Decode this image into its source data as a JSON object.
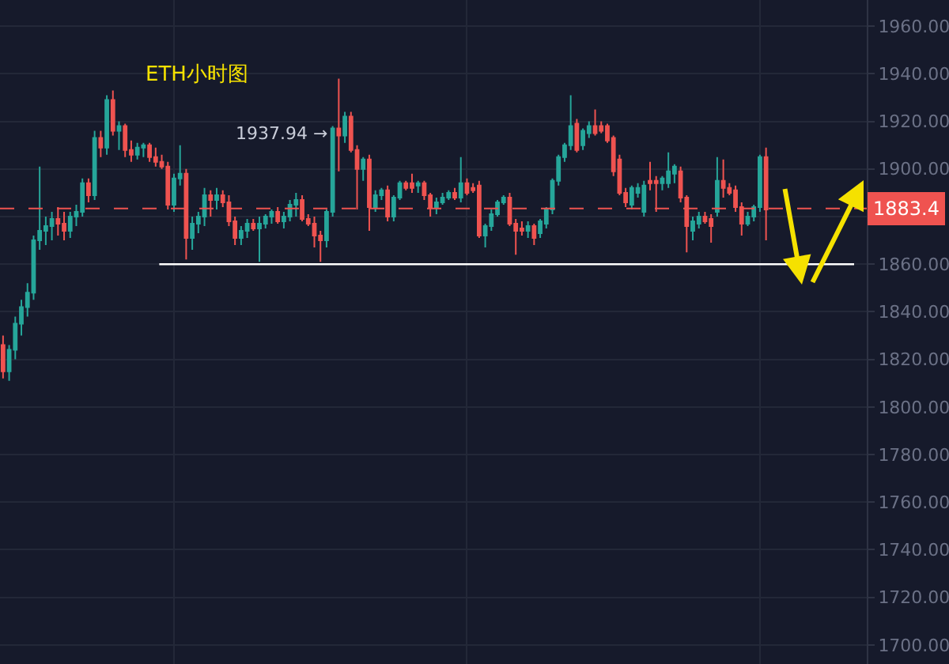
{
  "chart_data": {
    "type": "candlestick",
    "title": "ETH小时图",
    "annotations": [
      "1937.94 →"
    ],
    "categories": [
      null,
      null,
      null,
      null,
      null,
      null,
      null,
      null,
      null,
      null,
      null,
      null,
      null,
      null,
      null,
      null,
      null,
      null,
      null,
      null,
      null,
      null,
      null,
      null,
      null,
      null,
      null,
      null,
      null,
      null,
      null,
      null,
      null,
      null,
      null,
      null,
      null,
      null,
      null,
      null,
      null,
      null,
      null,
      null,
      null,
      null,
      null,
      null,
      null,
      null,
      null,
      null,
      null,
      null,
      null,
      null,
      null,
      null,
      null,
      null,
      null,
      null,
      null,
      null,
      null,
      null,
      null,
      null,
      null,
      null,
      null,
      null,
      null,
      null,
      null,
      null,
      null,
      null,
      null,
      null,
      null,
      null,
      null,
      null,
      null,
      null,
      null,
      null,
      null,
      null,
      null,
      null,
      null,
      null,
      null,
      null,
      null,
      null,
      null,
      null,
      null,
      null,
      null,
      null,
      null,
      null,
      null,
      null,
      null,
      null,
      null,
      null,
      null,
      null,
      null,
      null,
      null,
      null,
      null,
      null,
      null,
      null,
      null,
      null,
      null,
      null,
      null,
      null,
      null,
      null,
      null,
      null,
      null,
      null,
      null,
      null,
      null,
      null,
      null,
      null,
      null,
      null
    ],
    "ohlc": [
      [
        1826,
        1830,
        1812,
        1815
      ],
      [
        1815,
        1826,
        1811,
        1824
      ],
      [
        1824,
        1838,
        1820,
        1835
      ],
      [
        1835,
        1845,
        1830,
        1842
      ],
      [
        1842,
        1852,
        1838,
        1848
      ],
      [
        1848,
        1872,
        1845,
        1870
      ],
      [
        1870,
        1901,
        1866,
        1874
      ],
      [
        1874,
        1880,
        1868,
        1876
      ],
      [
        1876,
        1882,
        1870,
        1879
      ],
      [
        1879,
        1884,
        1872,
        1877
      ],
      [
        1877,
        1882,
        1870,
        1874
      ],
      [
        1874,
        1882,
        1871,
        1880
      ],
      [
        1880,
        1885,
        1876,
        1882
      ],
      [
        1882,
        1896,
        1880,
        1894
      ],
      [
        1894,
        1896,
        1886,
        1889
      ],
      [
        1889,
        1916,
        1887,
        1913
      ],
      [
        1913,
        1916,
        1905,
        1909
      ],
      [
        1909,
        1931,
        1906,
        1929
      ],
      [
        1929,
        1933,
        1914,
        1916
      ],
      [
        1916,
        1920,
        1908,
        1918
      ],
      [
        1918,
        1919,
        1905,
        1908
      ],
      [
        1908,
        1912,
        1903,
        1906
      ],
      [
        1906,
        1911,
        1904,
        1909
      ],
      [
        1909,
        1911,
        1905,
        1910
      ],
      [
        1910,
        1911,
        1903,
        1905
      ],
      [
        1905,
        1909,
        1901,
        1903
      ],
      [
        1903,
        1906,
        1900,
        1901
      ],
      [
        1901,
        1903,
        1883,
        1885
      ],
      [
        1885,
        1898,
        1882,
        1896
      ],
      [
        1896,
        1910,
        1893,
        1898
      ],
      [
        1898,
        1900,
        1862,
        1871
      ],
      [
        1871,
        1880,
        1866,
        1877
      ],
      [
        1877,
        1882,
        1873,
        1880
      ],
      [
        1880,
        1892,
        1876,
        1889
      ],
      [
        1889,
        1891,
        1880,
        1887
      ],
      [
        1887,
        1892,
        1883,
        1889
      ],
      [
        1889,
        1891,
        1884,
        1886
      ],
      [
        1886,
        1889,
        1876,
        1878
      ],
      [
        1878,
        1880,
        1868,
        1871
      ],
      [
        1871,
        1876,
        1868,
        1874
      ],
      [
        1874,
        1879,
        1871,
        1877
      ],
      [
        1877,
        1879,
        1874,
        1875
      ],
      [
        1875,
        1880,
        1861,
        1877
      ],
      [
        1877,
        1881,
        1875,
        1880
      ],
      [
        1880,
        1883,
        1877,
        1882
      ],
      [
        1882,
        1884,
        1877,
        1878
      ],
      [
        1878,
        1882,
        1875,
        1880
      ],
      [
        1880,
        1887,
        1878,
        1885
      ],
      [
        1885,
        1890,
        1880,
        1887
      ],
      [
        1887,
        1889,
        1878,
        1879
      ],
      [
        1879,
        1881,
        1876,
        1877
      ],
      [
        1877,
        1880,
        1867,
        1872
      ],
      [
        1872,
        1874,
        1861,
        1870
      ],
      [
        1870,
        1883,
        1867,
        1882
      ],
      [
        1882,
        1918,
        1880,
        1917
      ],
      [
        1917,
        1937.94,
        1899,
        1914
      ],
      [
        1914,
        1924,
        1911,
        1922
      ],
      [
        1922,
        1924,
        1907,
        1908
      ],
      [
        1908,
        1910,
        1883,
        1900
      ],
      [
        1900,
        1905,
        1895,
        1904
      ],
      [
        1904,
        1906,
        1874,
        1884
      ],
      [
        1884,
        1891,
        1882,
        1889
      ],
      [
        1889,
        1892,
        1887,
        1891
      ],
      [
        1891,
        1893,
        1878,
        1880
      ],
      [
        1880,
        1889,
        1878,
        1888
      ],
      [
        1888,
        1895,
        1887,
        1894
      ],
      [
        1894,
        1895,
        1891,
        1892
      ],
      [
        1894,
        1898,
        1890,
        1892
      ],
      [
        1893,
        1895,
        1890,
        1894
      ],
      [
        1894,
        1895,
        1887,
        1889
      ],
      [
        1889,
        1890,
        1880,
        1884
      ],
      [
        1884,
        1888,
        1881,
        1886
      ],
      [
        1886,
        1890,
        1885,
        1888
      ],
      [
        1888,
        1891,
        1887,
        1890
      ],
      [
        1890,
        1892,
        1887,
        1888
      ],
      [
        1888,
        1905,
        1886,
        1894
      ],
      [
        1894,
        1896,
        1889,
        1890
      ],
      [
        1892,
        1894,
        1890,
        1891
      ],
      [
        1893,
        1895,
        1871,
        1872
      ],
      [
        1872,
        1877,
        1867,
        1876
      ],
      [
        1876,
        1883,
        1874,
        1881
      ],
      [
        1881,
        1887,
        1880,
        1886
      ],
      [
        1886,
        1889,
        1885,
        1888
      ],
      [
        1888,
        1890,
        1876,
        1877
      ],
      [
        1877,
        1879,
        1864,
        1874
      ],
      [
        1875,
        1878,
        1872,
        1874
      ],
      [
        1874,
        1878,
        1871,
        1876
      ],
      [
        1876,
        1877,
        1868,
        1871
      ],
      [
        1873,
        1879,
        1871,
        1878
      ],
      [
        1877,
        1884,
        1875,
        1883
      ],
      [
        1883,
        1896,
        1881,
        1895
      ],
      [
        1895,
        1906,
        1893,
        1905
      ],
      [
        1905,
        1911,
        1903,
        1910
      ],
      [
        1910,
        1931,
        1908,
        1918
      ],
      [
        1919,
        1921,
        1907,
        1908
      ],
      [
        1910,
        1917,
        1908,
        1916
      ],
      [
        1915,
        1920,
        1913,
        1918
      ],
      [
        1918,
        1925,
        1914,
        1915
      ],
      [
        1918,
        1920,
        1915,
        1916
      ],
      [
        1918,
        1919,
        1911,
        1912
      ],
      [
        1913,
        1914,
        1897,
        1899
      ],
      [
        1904,
        1906,
        1889,
        1890
      ],
      [
        1890,
        1892,
        1884,
        1886
      ],
      [
        1885,
        1893,
        1883,
        1892
      ],
      [
        1890,
        1894,
        1888,
        1892
      ],
      [
        1882,
        1895,
        1880,
        1893
      ],
      [
        1895,
        1903,
        1891,
        1894
      ],
      [
        1895,
        1897,
        1882,
        1894
      ],
      [
        1894,
        1897,
        1891,
        1896
      ],
      [
        1894,
        1907,
        1892,
        1899
      ],
      [
        1898,
        1902,
        1894,
        1901
      ],
      [
        1899,
        1901,
        1886,
        1888
      ],
      [
        1888,
        1889,
        1865,
        1876
      ],
      [
        1874,
        1880,
        1870,
        1878
      ],
      [
        1877,
        1882,
        1875,
        1880
      ],
      [
        1880,
        1882,
        1877,
        1878
      ],
      [
        1879,
        1881,
        1869,
        1876
      ],
      [
        1882,
        1905,
        1880,
        1895
      ],
      [
        1895,
        1904,
        1888,
        1892
      ],
      [
        1892,
        1894,
        1889,
        1890
      ],
      [
        1891,
        1893,
        1882,
        1884
      ],
      [
        1884,
        1886,
        1872,
        1877
      ],
      [
        1877,
        1882,
        1876,
        1880
      ],
      [
        1880,
        1885,
        1878,
        1884
      ],
      [
        1884,
        1906,
        1882,
        1905
      ],
      [
        1905,
        1909,
        1870,
        1883
      ],
      null,
      null,
      null,
      null,
      null,
      null,
      null,
      null,
      null,
      null,
      null,
      null,
      null,
      null,
      null,
      null
    ],
    "colors": [
      "#ef5350",
      "#26a69a",
      "#26a69a",
      "#26a69a",
      "#26a69a",
      "#26a69a",
      "#26a69a",
      "#26a69a",
      "#26a69a",
      "#ef5350",
      "#ef5350",
      "#26a69a",
      "#26a69a",
      "#26a69a",
      "#ef5350",
      "#26a69a",
      "#ef5350",
      "#26a69a",
      "#ef5350",
      "#26a69a",
      "#ef5350",
      "#ef5350",
      "#26a69a",
      "#26a69a",
      "#ef5350",
      "#ef5350",
      "#ef5350",
      "#ef5350",
      "#26a69a",
      "#26a69a",
      "#ef5350",
      "#26a69a",
      "#26a69a",
      "#26a69a",
      "#ef5350",
      "#26a69a",
      "#ef5350",
      "#ef5350",
      "#ef5350",
      "#26a69a",
      "#26a69a",
      "#ef5350",
      "#26a69a",
      "#26a69a",
      "#26a69a",
      "#ef5350",
      "#26a69a",
      "#26a69a",
      "#26a69a",
      "#ef5350",
      "#ef5350",
      "#ef5350",
      "#ef5350",
      "#26a69a",
      "#26a69a",
      "#ef5350",
      "#26a69a",
      "#ef5350",
      "#ef5350",
      "#26a69a",
      "#ef5350",
      "#26a69a",
      "#26a69a",
      "#ef5350",
      "#26a69a",
      "#26a69a",
      "#ef5350",
      "#ef5350",
      "#26a69a",
      "#ef5350",
      "#ef5350",
      "#26a69a",
      "#26a69a",
      "#26a69a",
      "#ef5350",
      "#26a69a",
      "#ef5350",
      "#ef5350",
      "#ef5350",
      "#26a69a",
      "#26a69a",
      "#26a69a",
      "#26a69a",
      "#ef5350",
      "#ef5350",
      "#ef5350",
      "#26a69a",
      "#ef5350",
      "#26a69a",
      "#26a69a",
      "#26a69a",
      "#26a69a",
      "#26a69a",
      "#26a69a",
      "#ef5350",
      "#26a69a",
      "#26a69a",
      "#ef5350",
      "#ef5350",
      "#ef5350",
      "#ef5350",
      "#ef5350",
      "#ef5350",
      "#26a69a",
      "#26a69a",
      "#26a69a",
      "#ef5350",
      "#ef5350",
      "#26a69a",
      "#26a69a",
      "#26a69a",
      "#ef5350",
      "#ef5350",
      "#26a69a",
      "#26a69a",
      "#ef5350",
      "#ef5350",
      "#26a69a",
      "#ef5350",
      "#ef5350",
      "#ef5350",
      "#ef5350",
      "#26a69a",
      "#26a69a",
      "#26a69a",
      "#ef5350",
      null,
      null,
      null,
      null,
      null,
      null,
      null,
      null,
      null,
      null,
      null,
      null,
      null,
      null,
      null,
      null
    ],
    "ylim": [
      1692,
      1971
    ],
    "yticks": [
      {
        "value": 1700,
        "label": "1700.00"
      },
      {
        "value": 1720,
        "label": "1720.00"
      },
      {
        "value": 1740,
        "label": "1740.00"
      },
      {
        "value": 1760,
        "label": "1760.00"
      },
      {
        "value": 1780,
        "label": "1780.00"
      },
      {
        "value": 1800,
        "label": "1800.00"
      },
      {
        "value": 1820,
        "label": "1820.00"
      },
      {
        "value": 1840,
        "label": "1840.00"
      },
      {
        "value": 1860,
        "label": "1860.00"
      },
      {
        "value": 1880,
        "label": null
      },
      {
        "value": 1900,
        "label": "1900.00"
      },
      {
        "value": 1920,
        "label": "1920.00"
      },
      {
        "value": 1940,
        "label": "1940.00"
      },
      {
        "value": 1960,
        "label": "1960.00"
      }
    ],
    "ref_lines": [
      {
        "axis": "y",
        "value": 1883.4,
        "label": "1883.4",
        "color": "#ef5350",
        "line_style": "dashed"
      },
      {
        "axis": "y",
        "value": 1860,
        "color": "#ffffff",
        "line_style": "solid"
      }
    ],
    "grid": true,
    "tick_labels": "y"
  }
}
